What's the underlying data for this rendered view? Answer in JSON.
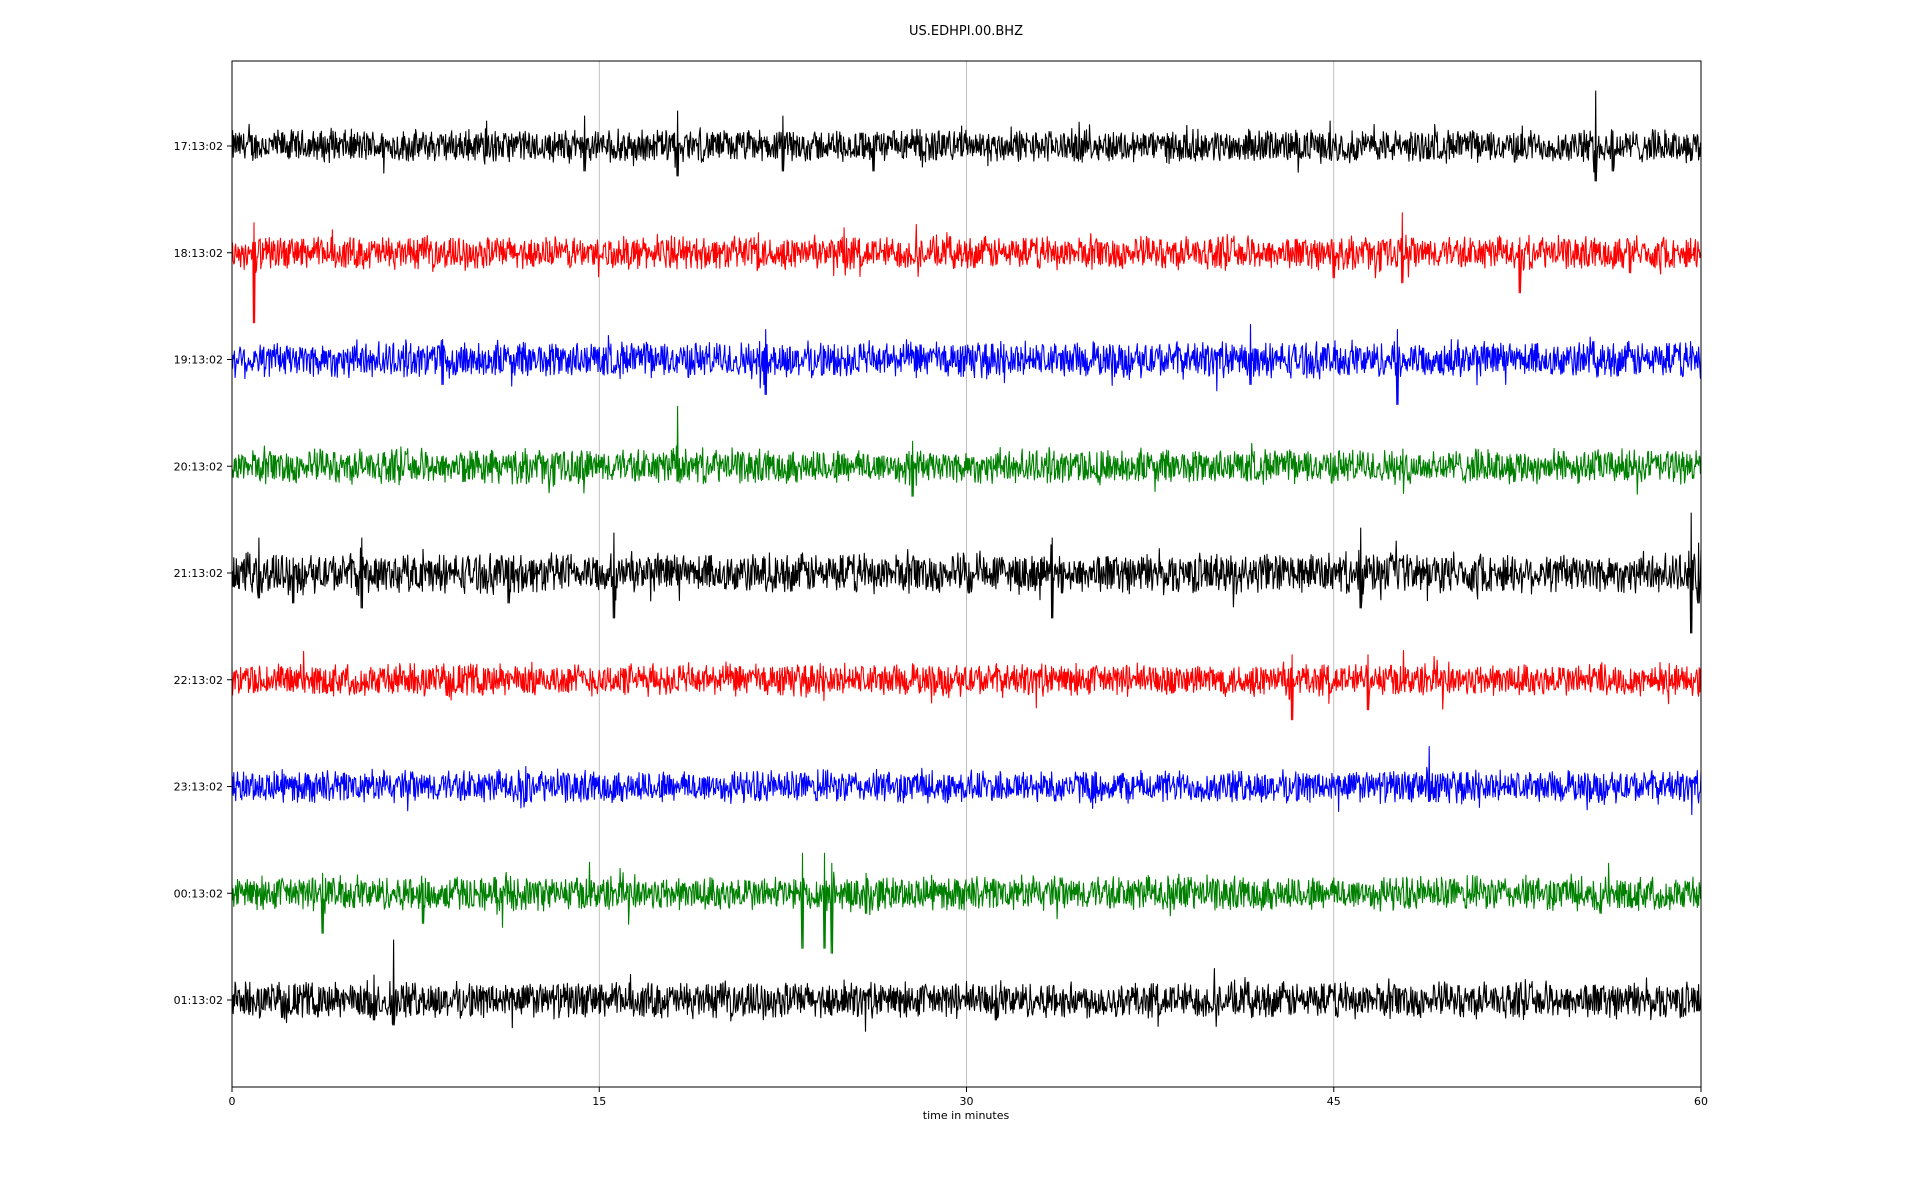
{
  "chart_data": {
    "type": "line",
    "title": "US.EDHPI.00.BHZ",
    "xlabel": "time in minutes",
    "ylabel": "",
    "xlim": [
      0,
      60
    ],
    "xticks": [
      0,
      15,
      30,
      45,
      60
    ],
    "vertical_gridlines_at": [
      15,
      30,
      45
    ],
    "trace_colors": [
      "#000000",
      "#ff0000",
      "#0000ff",
      "#008000"
    ],
    "rows": [
      {
        "label": "17:13:02",
        "color": "#000000",
        "noise": 0.18,
        "spikes": [
          [
            10.4,
            0.25,
            -0.1
          ],
          [
            14.4,
            0.3,
            -0.25
          ],
          [
            18.2,
            0.35,
            -0.3
          ],
          [
            22.5,
            0.3,
            -0.25
          ],
          [
            26.2,
            0.1,
            -0.25
          ],
          [
            29.8,
            0.2,
            -0.1
          ],
          [
            52.7,
            0.2,
            -0.1
          ],
          [
            55.7,
            0.55,
            -0.35
          ],
          [
            56.4,
            0.15,
            -0.25
          ]
        ]
      },
      {
        "label": "18:13:02",
        "color": "#ff0000",
        "noise": 0.18,
        "spikes": [
          [
            0.9,
            0.3,
            -0.7
          ],
          [
            21.5,
            0.2,
            -0.15
          ],
          [
            25.0,
            0.25,
            -0.1
          ],
          [
            45.0,
            0.1,
            -0.25
          ],
          [
            47.8,
            0.4,
            -0.3
          ],
          [
            52.6,
            0.15,
            -0.4
          ],
          [
            57.1,
            0.1,
            -0.2
          ]
        ]
      },
      {
        "label": "19:13:02",
        "color": "#0000ff",
        "noise": 0.2,
        "spikes": [
          [
            8.6,
            0.2,
            -0.25
          ],
          [
            21.8,
            0.3,
            -0.35
          ],
          [
            24.6,
            0.15,
            -0.15
          ],
          [
            41.6,
            0.35,
            -0.25
          ],
          [
            47.6,
            0.3,
            -0.45
          ],
          [
            49.8,
            0.2,
            -0.1
          ],
          [
            55.2,
            0.15,
            -0.1
          ]
        ]
      },
      {
        "label": "20:13:02",
        "color": "#008000",
        "noise": 0.19,
        "spikes": [
          [
            9.5,
            0.1,
            -0.15
          ],
          [
            14.5,
            0.15,
            -0.1
          ],
          [
            18.2,
            0.6,
            -0.15
          ],
          [
            27.8,
            0.25,
            -0.3
          ],
          [
            35.5,
            0.15,
            -0.1
          ]
        ]
      },
      {
        "label": "21:13:02",
        "color": "#000000",
        "noise": 0.22,
        "spikes": [
          [
            1.1,
            0.35,
            -0.25
          ],
          [
            2.5,
            0.15,
            -0.3
          ],
          [
            5.3,
            0.35,
            -0.35
          ],
          [
            11.3,
            0.15,
            -0.3
          ],
          [
            15.6,
            0.4,
            -0.45
          ],
          [
            22.2,
            0.15,
            -0.15
          ],
          [
            30.1,
            0.1,
            -0.2
          ],
          [
            33.5,
            0.35,
            -0.45
          ],
          [
            33.9,
            0.1,
            -0.2
          ],
          [
            46.1,
            0.45,
            -0.35
          ],
          [
            59.6,
            0.6,
            -0.6
          ],
          [
            59.9,
            0.3,
            -0.3
          ]
        ]
      },
      {
        "label": "22:13:02",
        "color": "#ff0000",
        "noise": 0.18,
        "spikes": [
          [
            43.3,
            0.25,
            -0.4
          ],
          [
            46.4,
            0.25,
            -0.3
          ],
          [
            55.9,
            0.15,
            -0.1
          ]
        ]
      },
      {
        "label": "23:13:02",
        "color": "#0000ff",
        "noise": 0.18,
        "spikes": [
          [
            12.0,
            0.2,
            -0.15
          ],
          [
            48.9,
            0.4,
            -0.15
          ]
        ]
      },
      {
        "label": "00:13:02",
        "color": "#008000",
        "noise": 0.19,
        "spikes": [
          [
            3.7,
            0.2,
            -0.4
          ],
          [
            7.8,
            0.1,
            -0.3
          ],
          [
            23.3,
            0.4,
            -0.55
          ],
          [
            24.2,
            0.4,
            -0.55
          ],
          [
            24.5,
            0.3,
            -0.6
          ],
          [
            25.9,
            0.2,
            -0.2
          ],
          [
            38.9,
            0.15,
            -0.1
          ],
          [
            55.9,
            0.1,
            -0.2
          ]
        ]
      },
      {
        "label": "01:13:02",
        "color": "#000000",
        "noise": 0.2,
        "spikes": [
          [
            5.8,
            0.25,
            -0.2
          ],
          [
            6.6,
            0.6,
            -0.25
          ],
          [
            25.0,
            0.2,
            -0.1
          ],
          [
            31.2,
            0.15,
            -0.2
          ]
        ]
      }
    ]
  }
}
